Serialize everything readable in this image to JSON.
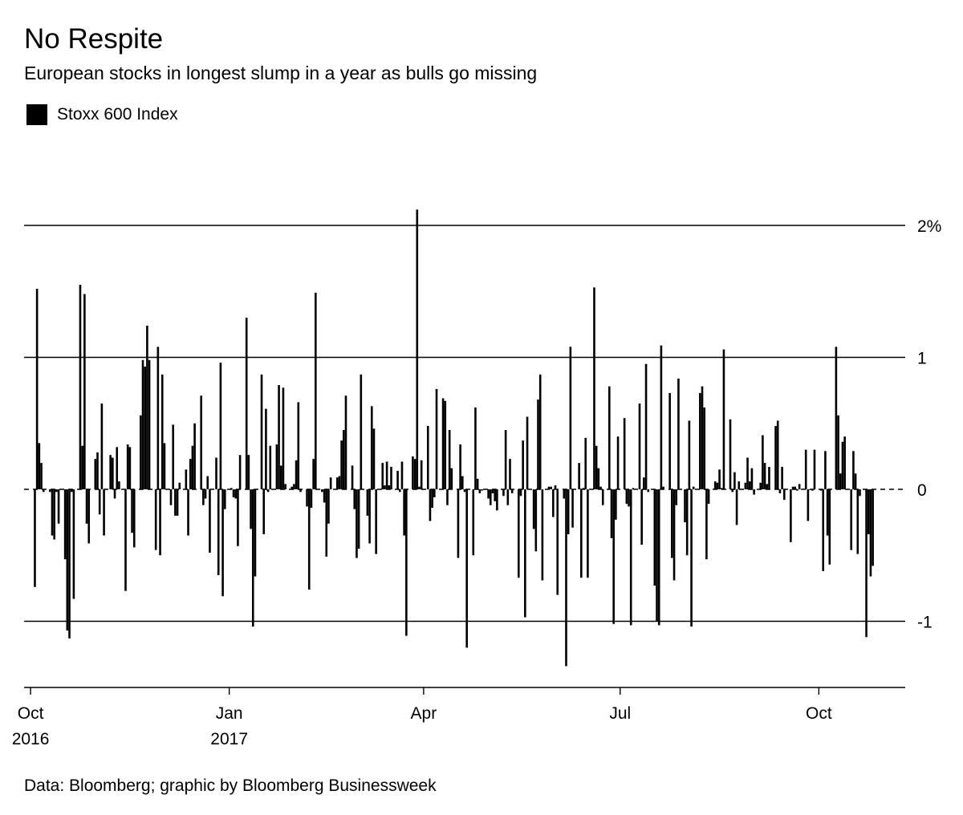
{
  "chart_data": {
    "type": "bar",
    "title": "No Respite",
    "subtitle": "European stocks in longest slump in a year as bulls go missing",
    "legend": [
      {
        "name": "Stoxx 600 Index",
        "color": "#000000"
      }
    ],
    "legend_position": "top-left",
    "source": "Data: Bloomberg; graphic by Bloomberg Businessweek",
    "ylim": [
      -1.5,
      2.1
    ],
    "yticks": [
      {
        "value": 2,
        "label": "2%"
      },
      {
        "value": 1,
        "label": "1"
      },
      {
        "value": 0,
        "label": "0"
      },
      {
        "value": -1,
        "label": "-1"
      }
    ],
    "xlim": [
      "2016-09-28",
      "2017-11-10"
    ],
    "xticks": [
      {
        "date": "2016-10-01",
        "label": "Oct",
        "sublabel": "2016"
      },
      {
        "date": "2017-01-01",
        "label": "Jan",
        "sublabel": "2017"
      },
      {
        "date": "2017-04-01",
        "label": "Apr",
        "sublabel": ""
      },
      {
        "date": "2017-07-01",
        "label": "Jul",
        "sublabel": ""
      },
      {
        "date": "2017-10-01",
        "label": "Oct",
        "sublabel": ""
      }
    ],
    "grid": true,
    "zero_line_style": "dashed",
    "series": [
      {
        "name": "Stoxx 600 Index",
        "start_date": "2016-10-03",
        "frequency": "business-daily",
        "values": [
          -0.74,
          1.52,
          0.35,
          0.2,
          -0.02,
          -0.02,
          -0.35,
          -0.38,
          -0.02,
          -0.26,
          -0.53,
          -1.07,
          -1.13,
          -0.02,
          -0.83,
          1.55,
          0.33,
          1.48,
          -0.26,
          -0.41,
          0.23,
          0.28,
          -0.19,
          0.65,
          -0.35,
          0.26,
          0.24,
          -0.07,
          0.32,
          0.06,
          -0.77,
          0.34,
          0.32,
          -0.33,
          -0.44,
          0.56,
          0.98,
          0.93,
          1.24,
          0.98,
          -0.46,
          1.08,
          -0.5,
          0.87,
          0.35,
          -0.12,
          0.49,
          -0.2,
          -0.2,
          0.05,
          0.15,
          -0.35,
          0.23,
          0.33,
          0.5,
          0.71,
          -0.12,
          -0.07,
          0.1,
          -0.48,
          0.24,
          -0.65,
          0.96,
          -0.81,
          -0.15,
          0.01,
          -0.06,
          -0.07,
          -0.43,
          0.26,
          1.3,
          0.26,
          -0.3,
          -1.04,
          -0.66,
          0.87,
          -0.34,
          0.61,
          -0.02,
          0.33,
          0.34,
          0.79,
          0.18,
          0.77,
          0.04,
          0.02,
          0.04,
          0.22,
          0.66,
          -0.02,
          -0.13,
          -0.76,
          -0.14,
          0.23,
          1.49,
          -0.02,
          -0.1,
          -0.51,
          -0.26,
          0.09,
          0.09,
          0.1,
          0.37,
          0.45,
          0.71,
          0.18,
          -0.15,
          -0.52,
          -0.45,
          0.87,
          -0.2,
          -0.41,
          0.63,
          0.46,
          -0.49,
          0.2,
          0.03,
          0.21,
          0.03,
          0.17,
          0.14,
          -0.02,
          0.21,
          -0.35,
          -1.11,
          0.25,
          0.23,
          2.12,
          0.02,
          0.22,
          0.48,
          -0.24,
          -0.14,
          -0.06,
          0.76,
          0.69,
          0.67,
          -0.12,
          0.45,
          0.16,
          -0.52,
          0.34,
          0.1,
          -0.02,
          -1.2,
          -0.5,
          0.62,
          0.08,
          -0.03,
          -0.01,
          -0.07,
          -0.12,
          -0.03,
          -0.09,
          -0.16,
          -0.05,
          0.45,
          -0.12,
          0.23,
          -0.03,
          -0.67,
          -0.05,
          0.37,
          -0.97,
          0.55,
          -0.3,
          -0.47,
          0.68,
          0.87,
          -0.69,
          0.02,
          0.02,
          -0.21,
          0.03,
          -0.8,
          -0.07,
          -1.34,
          -0.34,
          1.08,
          -0.29,
          0.2,
          -0.67,
          0.01,
          0.39,
          -0.67,
          1.53,
          0.33,
          0.16,
          0.02,
          -0.12,
          0.78,
          -0.37,
          -1.02,
          -0.23,
          0.4,
          0.54,
          -0.11,
          -0.13,
          -1.03,
          0.01,
          0.65,
          -0.42,
          0.09,
          0.95,
          -0.02,
          -0.73,
          -1.0,
          -1.03,
          1.09,
          0.02,
          0.73,
          -0.52,
          -0.69,
          -0.12,
          0.84,
          -0.25,
          -0.5,
          0.52,
          -1.04,
          0.02,
          0.73,
          0.78,
          0.62,
          -0.53,
          -0.11,
          0.06,
          0.05,
          0.15,
          0.01,
          1.06,
          0.53,
          -0.02,
          0.13,
          -0.27,
          0.06,
          0.05,
          0.24,
          0.06,
          0.16,
          -0.04,
          0.05,
          0.41,
          0.2,
          0.04,
          0.17,
          0.48,
          0.52,
          -0.03,
          0.17,
          -0.08,
          -0.4,
          0.02,
          0.02,
          -0.01,
          0.04,
          0.3,
          -0.24,
          0.0,
          -0.01,
          0.3,
          -0.01,
          -0.62,
          0.29,
          -0.35,
          -0.57,
          1.08,
          0.56,
          0.12,
          0.36,
          0.4,
          -0.46,
          0.29,
          0.12,
          -0.49,
          -0.05,
          -1.12,
          -0.34,
          -0.66,
          -0.58
        ]
      }
    ]
  }
}
